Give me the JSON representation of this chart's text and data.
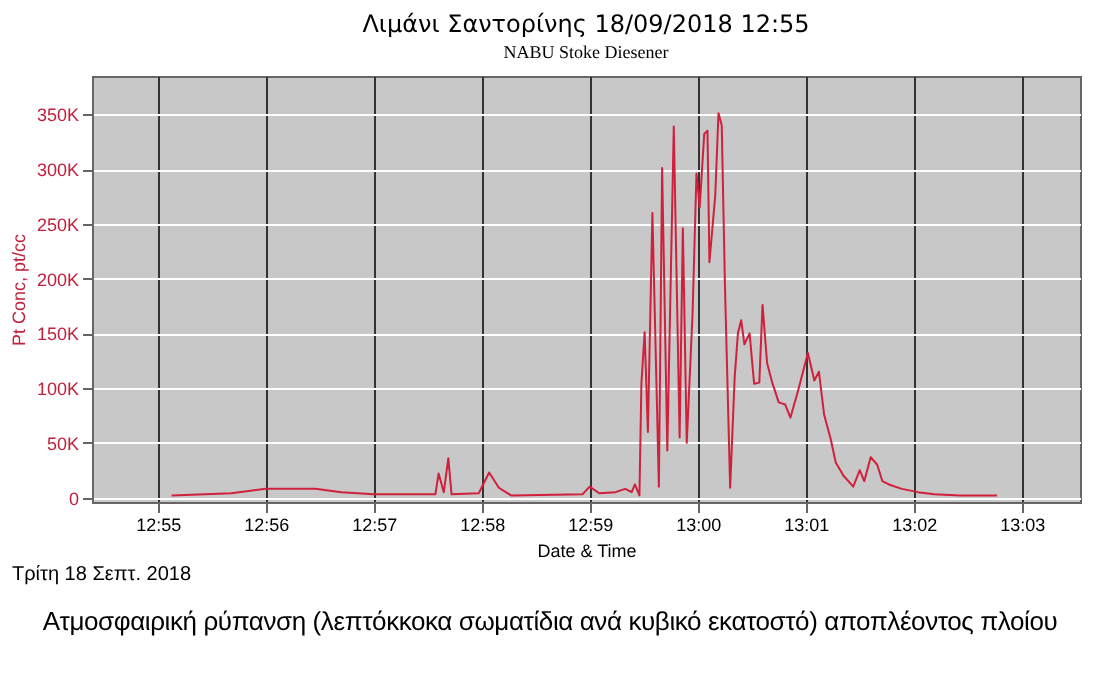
{
  "chart_data": {
    "type": "line",
    "title": "Λιμάνι Σαντορίνης 18/09/2018 12:55",
    "subtitle": "NABU Stoke Diesener",
    "xlabel": "Date & Time",
    "ylabel": "Pt Conc, pt/cc",
    "annotations": [
      "Τρίτη 18 Σεπτ. 2018",
      "Ατμοσφαιρική ρύπανση (λεπτόκκοκα σωματίδια ανά κυβικό εκατοστό) αποπλέοντος πλοίου"
    ],
    "x": [
      12.9188,
      12.928,
      12.9333,
      12.941,
      12.945,
      12.95,
      12.9595,
      12.96,
      12.9608,
      12.9615,
      12.962,
      12.9662,
      12.9678,
      12.9693,
      12.9712,
      12.9822,
      12.9833,
      12.9848,
      12.9873,
      12.9888,
      12.9898,
      12.9903,
      12.991,
      12.9913,
      12.9918,
      12.9923,
      12.993,
      12.994,
      12.9945,
      12.9953,
      12.9963,
      12.9972,
      12.9977,
      12.9983,
      12.9992,
      12.9998,
      13.0003,
      13.001,
      13.0015,
      13.0018,
      13.0027,
      13.0032,
      13.0037,
      13.0042,
      13.005,
      13.0057,
      13.0062,
      13.0067,
      13.0072,
      13.008,
      13.0087,
      13.0095,
      13.01,
      13.0107,
      13.0115,
      13.0125,
      13.0135,
      13.0143,
      13.0155,
      13.017,
      13.018,
      13.0187,
      13.0195,
      13.0205,
      13.0213,
      13.0225,
      13.024,
      13.025,
      13.0257,
      13.0267,
      13.0277,
      13.0285,
      13.0295,
      13.0315,
      13.034,
      13.0365,
      13.0405,
      13.0462
    ],
    "series": [
      {
        "color": "#d0203c",
        "values": [
          2000,
          4000,
          8000,
          8000,
          5000,
          3000,
          3000,
          22000,
          5000,
          36000,
          3000,
          4000,
          23000,
          9000,
          2000,
          3000,
          10000,
          4000,
          5000,
          8000,
          5000,
          12000,
          2000,
          104000,
          151000,
          60000,
          260000,
          10000,
          301000,
          43000,
          339000,
          55000,
          246000,
          50000,
          168000,
          296000,
          265000,
          332000,
          335000,
          215000,
          276000,
          351000,
          340000,
          193000,
          9000,
          110000,
          150000,
          162000,
          140000,
          150000,
          104000,
          105000,
          176000,
          123000,
          105000,
          87000,
          85000,
          73000,
          98000,
          132000,
          107000,
          115000,
          76000,
          54000,
          32000,
          20000,
          10000,
          25000,
          15000,
          37000,
          30000,
          15000,
          12000,
          8000,
          5000,
          3000,
          2000,
          2000
        ]
      }
    ],
    "xlim": [
      12.9065,
      13.059
    ],
    "xticks": [
      {
        "value": 12.916667,
        "label": "12:55"
      },
      {
        "value": 12.933333,
        "label": "12:56"
      },
      {
        "value": 12.95,
        "label": "12:57"
      },
      {
        "value": 12.966667,
        "label": "12:58"
      },
      {
        "value": 12.983333,
        "label": "12:59"
      },
      {
        "value": 13,
        "label": "13:00"
      },
      {
        "value": 13.016667,
        "label": "13:01"
      },
      {
        "value": 13.033333,
        "label": "13:02"
      },
      {
        "value": 13.05,
        "label": "13:03"
      }
    ],
    "ylim": [
      -4000,
      385000
    ],
    "yticks": [
      0,
      {
        "value": 50000,
        "label": "50K"
      },
      {
        "value": 100000,
        "label": "100K"
      },
      {
        "value": 150000,
        "label": "150K"
      },
      {
        "value": 200000,
        "label": "200K"
      },
      {
        "value": 250000,
        "label": "250K"
      },
      {
        "value": 300000,
        "label": "300K"
      },
      {
        "value": 350000,
        "label": "350K"
      }
    ],
    "grid": true
  }
}
